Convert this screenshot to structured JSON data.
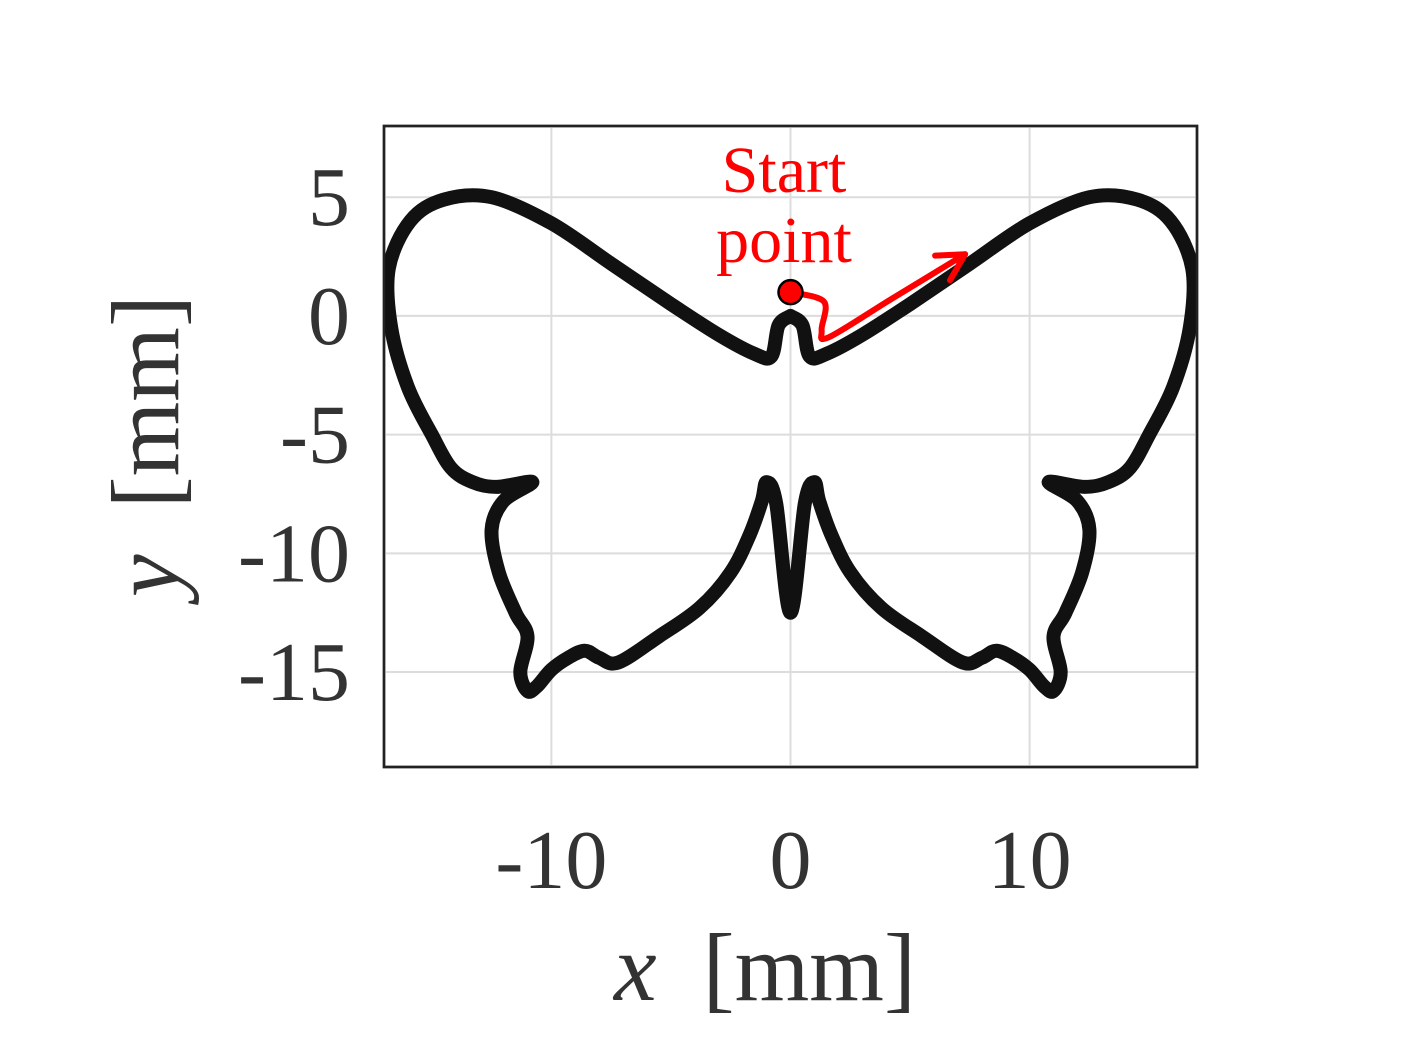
{
  "chart_data": {
    "type": "line",
    "title": "",
    "xlabel": "x [mm]",
    "xlabel_var": "x",
    "xlabel_unit": "[mm]",
    "ylabel": "y [mm]",
    "ylabel_var": "y",
    "ylabel_unit": "[mm]",
    "xlim": [
      -17,
      17
    ],
    "ylim": [
      -19,
      8
    ],
    "xticks": [
      -10,
      0,
      10
    ],
    "xtick_labels": [
      "-10",
      "0",
      "10"
    ],
    "yticks": [
      5,
      0,
      -5,
      -10,
      -15
    ],
    "ytick_labels": [
      "5",
      "0",
      "-5",
      "-10",
      "-15"
    ],
    "grid": true,
    "series": [
      {
        "color": "#111111",
        "closed": false,
        "x": [
          0.0,
          0.5,
          0.8,
          1.5,
          3.0,
          5.0,
          7.5,
          10.0,
          12.5,
          14.5,
          15.9,
          16.8,
          16.7,
          16.0,
          15.0,
          14.2,
          13.3,
          12.3,
          10.8,
          12.0,
          12.5,
          12.2,
          11.5,
          11.0,
          11.3,
          11.0,
          10.6,
          10.0,
          9.3,
          8.6,
          8.0,
          7.2,
          5.5,
          3.8,
          2.5,
          1.7,
          1.2,
          1.0,
          0.6,
          0.0,
          -0.6,
          -1.0,
          -1.2,
          -1.7,
          -2.5,
          -3.8,
          -5.5,
          -7.2,
          -8.0,
          -8.6,
          -9.3,
          -10.0,
          -10.6,
          -11.0,
          -11.3,
          -11.0,
          -11.5,
          -12.2,
          -12.5,
          -12.0,
          -10.8,
          -12.3,
          -13.3,
          -14.2,
          -15.0,
          -16.0,
          -16.7,
          -16.8,
          -15.9,
          -14.5,
          -12.5,
          -10.0,
          -7.5,
          -5.0,
          -3.0,
          -1.5,
          -0.8,
          -0.5,
          0.0
        ],
        "y": [
          0.0,
          -0.4,
          -1.7,
          -1.6,
          -0.8,
          0.5,
          2.2,
          3.9,
          5.0,
          4.9,
          4.0,
          2.0,
          -0.5,
          -3.0,
          -5.0,
          -6.4,
          -7.0,
          -7.2,
          -7.0,
          -7.8,
          -9.0,
          -10.8,
          -12.5,
          -13.5,
          -15.0,
          -15.8,
          -15.6,
          -14.9,
          -14.4,
          -14.1,
          -14.4,
          -14.6,
          -13.5,
          -12.3,
          -10.8,
          -9.2,
          -7.8,
          -7.0,
          -7.9,
          -12.5,
          -7.9,
          -7.0,
          -7.8,
          -9.2,
          -10.8,
          -12.3,
          -13.5,
          -14.6,
          -14.4,
          -14.1,
          -14.4,
          -14.9,
          -15.6,
          -15.8,
          -15.0,
          -13.5,
          -12.5,
          -10.8,
          -9.0,
          -7.8,
          -7.0,
          -7.2,
          -7.0,
          -6.4,
          -5.0,
          -3.0,
          -0.5,
          2.0,
          4.0,
          4.9,
          5.0,
          3.9,
          2.2,
          0.5,
          -0.8,
          -1.6,
          -1.7,
          -0.4,
          0.0
        ]
      }
    ],
    "annotations": [
      {
        "text_line1": "Start",
        "text_line2": "point",
        "color": "#ff0000",
        "start_x": 0.0,
        "start_y": 1.0,
        "arrow_path_x": [
          0.0,
          1.4,
          1.3,
          1.6,
          4.2,
          7.3
        ],
        "arrow_path_y": [
          1.0,
          0.6,
          -0.6,
          -0.9,
          0.7,
          2.6
        ]
      }
    ]
  }
}
